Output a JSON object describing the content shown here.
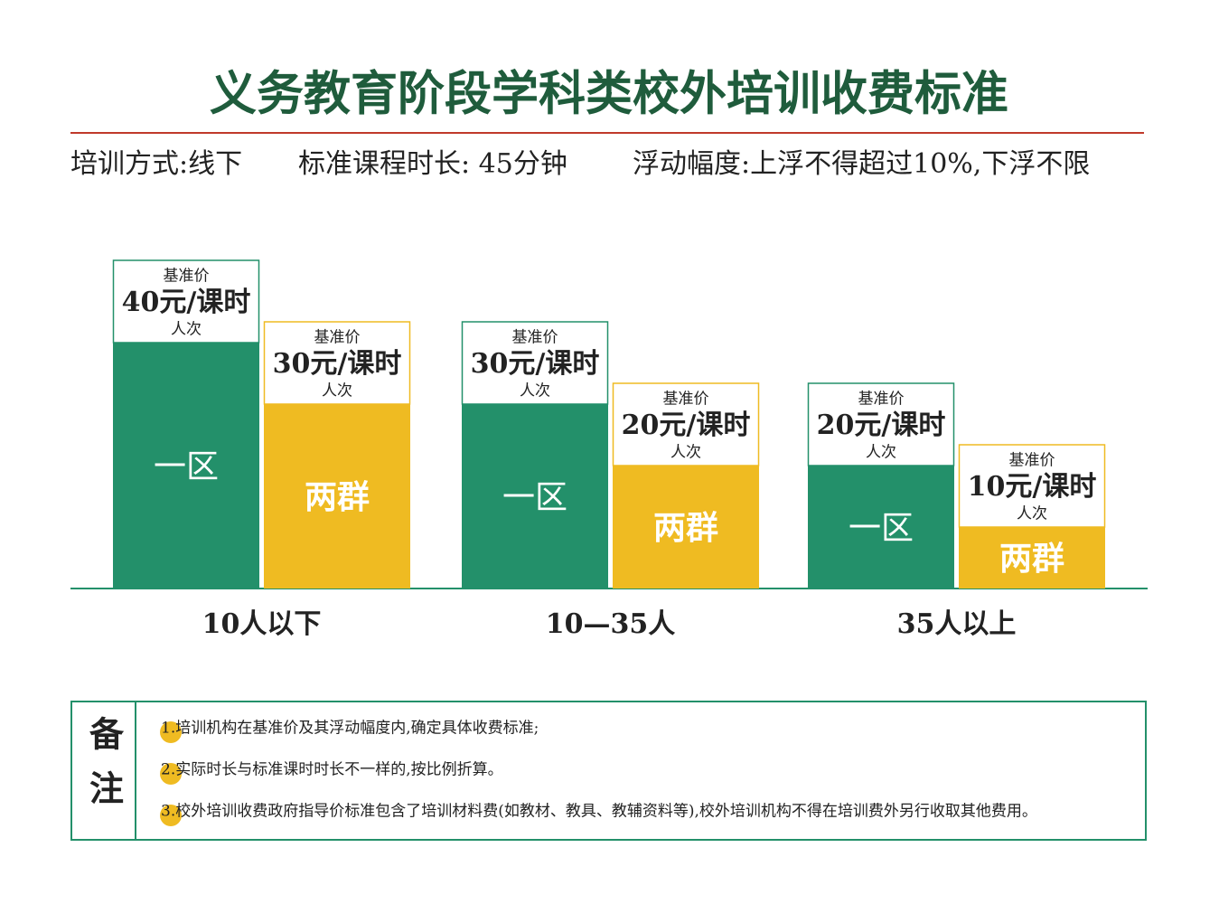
{
  "chart_data": {
    "type": "bar",
    "title": "义务教育阶段学科类校外培训收费标准",
    "subtitle_items": [
      "培训方式:线下",
      "标准课程时长: 45分钟",
      "浮动幅度:上浮不得超过10%,下浮不限"
    ],
    "categories": [
      "10人以下",
      "10—35人",
      "35人以上"
    ],
    "price_caption": "基准价",
    "unit_caption": "人次",
    "series": [
      {
        "name": "一区",
        "color": "#23906a",
        "values": [
          40,
          30,
          20
        ],
        "value_labels": [
          "40元/课时",
          "30元/课时",
          "20元/课时"
        ]
      },
      {
        "name": "两群",
        "color": "#efbb22",
        "values": [
          30,
          20,
          10
        ],
        "value_labels": [
          "30元/课时",
          "20元/课时",
          "10元/课时"
        ]
      }
    ],
    "ylim": [
      0,
      50
    ]
  },
  "remarks": {
    "title": "备注",
    "items": [
      "1.培训机构在基准价及其浮动幅度内,确定具体收费标准;",
      "2.实际时长与标准课时时长不一样的,按比例折算。",
      "3.校外培训收费政府指导价标准包含了培训材料费(如教材、教具、教辅资料等),校外培训机构不得在培训费外另行收取其他费用。"
    ]
  }
}
